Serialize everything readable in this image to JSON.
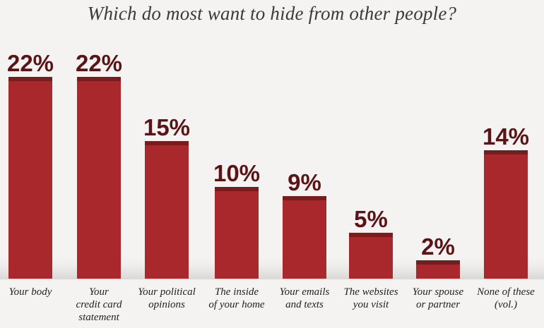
{
  "chart_data": {
    "type": "bar",
    "title": "Which do most want to hide from other people?",
    "categories": [
      [
        "Your body"
      ],
      [
        "Your",
        "credit card",
        "statement"
      ],
      [
        "Your political",
        "opinions"
      ],
      [
        "The inside",
        "of your home"
      ],
      [
        "Your emails",
        "and texts"
      ],
      [
        "The websites",
        "you visit"
      ],
      [
        "Your spouse",
        "or partner"
      ],
      [
        "None of these",
        "(vol.)"
      ]
    ],
    "values": [
      22,
      22,
      15,
      10,
      9,
      5,
      2,
      14
    ],
    "value_labels": [
      "22%",
      "22%",
      "15%",
      "10%",
      "9%",
      "5%",
      "2%",
      "14%"
    ],
    "unit": "%",
    "ylim": [
      0,
      22
    ],
    "grid": false,
    "colors": {
      "bar": "#a8282b",
      "bar_cap": "#7a1b1e",
      "label": "#5a1416"
    }
  }
}
